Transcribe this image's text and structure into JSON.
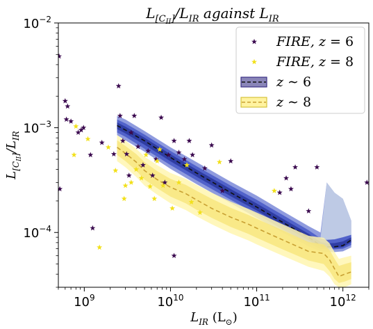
{
  "chart_data": {
    "type": "scatter",
    "title": "L_{[C_{II}]}/L_{IR} against L_{IR}",
    "title_parts": {
      "main": "L",
      "main_sub": "[C",
      "main_subsub": "II",
      "main_sub_close": "]",
      "mid": "/L",
      "mid_sub": "IR",
      "tail": " against L",
      "tail_sub": "IR"
    },
    "xlabel": "L_IR (L_⊙)",
    "xlabel_parts": {
      "main": "L",
      "sub": "IR",
      "unit": " (L",
      "unit_sub": "⊙",
      "close": ")"
    },
    "ylabel": "L_[CII]/L_IR",
    "ylabel_parts": {
      "main": "L",
      "sub": "[C",
      "subsub": "II",
      "sub_close": "]",
      "mid": "/L",
      "mid_sub": "IR"
    },
    "x_scale": "log",
    "y_scale": "log",
    "xlim": [
      500000000.0,
      2000000000000.0
    ],
    "ylim": [
      3e-05,
      0.01
    ],
    "grid": false,
    "legend_position": "top-right",
    "x_ticks": [
      {
        "value": 1000000000.0,
        "base": "10",
        "exp": "9"
      },
      {
        "value": 10000000000.0,
        "base": "10",
        "exp": "10"
      },
      {
        "value": 100000000000.0,
        "base": "10",
        "exp": "11"
      },
      {
        "value": 1000000000000.0,
        "base": "10",
        "exp": "12"
      }
    ],
    "y_ticks": [
      {
        "value": 0.0001,
        "base": "10",
        "exp": "−4"
      },
      {
        "value": 0.001,
        "base": "10",
        "exp": "−3"
      },
      {
        "value": 0.01,
        "base": "10",
        "exp": "−2"
      }
    ],
    "legend": [
      {
        "kind": "star",
        "color": "#3b0a4f",
        "label": "FIRE, ",
        "label_z": "z",
        "label_eq": " = ",
        "label_val": "6"
      },
      {
        "kind": "star",
        "color": "#f2e01a",
        "label": "FIRE, ",
        "label_z": "z",
        "label_eq": " = ",
        "label_val": "8"
      },
      {
        "kind": "band",
        "color": "#3a2f86",
        "fill": "#8a86b8",
        "dash": "#111111",
        "label_z": "z",
        "label_eq": " ∼ ",
        "label_val": "6"
      },
      {
        "kind": "band",
        "color": "#d6c33b",
        "fill": "#fff3a0",
        "dash": "#c8a032",
        "label_z": "z",
        "label_eq": " ∼ ",
        "label_val": "8"
      }
    ],
    "series": [
      {
        "name": "FIRE, z = 6",
        "kind": "scatter",
        "color": "#3b0a4f",
        "points": [
          [
            510000000.0,
            0.0048
          ],
          [
            520000000.0,
            0.00026
          ],
          [
            600000000.0,
            0.0018
          ],
          [
            640000000.0,
            0.0016
          ],
          [
            620000000.0,
            0.0012
          ],
          [
            700000000.0,
            0.00115
          ],
          [
            850000000.0,
            0.0009
          ],
          [
            920000000.0,
            0.00095
          ],
          [
            980000000.0,
            0.001
          ],
          [
            1180000000.0,
            0.00055
          ],
          [
            1250000000.0,
            0.00011
          ],
          [
            1600000000.0,
            0.00072
          ],
          [
            2200000000.0,
            0.00056
          ],
          [
            2500000000.0,
            0.0025
          ],
          [
            2600000000.0,
            0.0013
          ],
          [
            2800000000.0,
            0.00075
          ],
          [
            3100000000.0,
            0.00056
          ],
          [
            3300000000.0,
            0.00035
          ],
          [
            3500000000.0,
            0.0009
          ],
          [
            3800000000.0,
            0.0013
          ],
          [
            4200000000.0,
            0.00066
          ],
          [
            4800000000.0,
            0.00044
          ],
          [
            5500000000.0,
            0.0006
          ],
          [
            6200000000.0,
            0.00035
          ],
          [
            6800000000.0,
            0.0005
          ],
          [
            7800000000.0,
            0.00125
          ],
          [
            8600000000.0,
            0.0003
          ],
          [
            9500000000.0,
            0.00055
          ],
          [
            11000000000.0,
            0.00075
          ],
          [
            11000000000.0,
            6e-05
          ],
          [
            12500000000.0,
            0.00058
          ],
          [
            14500000000.0,
            0.0005
          ],
          [
            16500000000.0,
            0.00075
          ],
          [
            18000000000.0,
            0.00055
          ],
          [
            25000000000.0,
            0.00041
          ],
          [
            30000000000.0,
            0.00068
          ],
          [
            40000000000.0,
            0.00025
          ],
          [
            50000000000.0,
            0.00048
          ],
          [
            185000000000.0,
            0.00024
          ],
          [
            220000000000.0,
            0.00033
          ],
          [
            250000000000.0,
            0.00026
          ],
          [
            280000000000.0,
            0.00042
          ],
          [
            400000000000.0,
            0.00016
          ],
          [
            500000000000.0,
            0.00042
          ],
          [
            1900000000000.0,
            0.0003
          ]
        ]
      },
      {
        "name": "FIRE, z = 8",
        "kind": "scatter",
        "color": "#f2e01a",
        "points": [
          [
            760000000.0,
            0.00055
          ],
          [
            800000000.0,
            0.00103
          ],
          [
            1100000000.0,
            0.00078
          ],
          [
            1500000000.0,
            7.2e-05
          ],
          [
            1900000000.0,
            0.00065
          ],
          [
            2300000000.0,
            0.00039
          ],
          [
            2900000000.0,
            0.00021
          ],
          [
            3000000000.0,
            0.00028
          ],
          [
            3500000000.0,
            0.0003
          ],
          [
            4000000000.0,
            0.0004
          ],
          [
            4600000000.0,
            0.00033
          ],
          [
            5200000000.0,
            0.00055
          ],
          [
            5800000000.0,
            0.000275
          ],
          [
            6500000000.0,
            0.00021
          ],
          [
            7000000000.0,
            0.00048
          ],
          [
            7500000000.0,
            0.00062
          ],
          [
            8200000000.0,
            0.00028
          ],
          [
            10500000000.0,
            0.00017
          ],
          [
            12500000000.0,
            0.0003
          ],
          [
            15500000000.0,
            0.00044
          ],
          [
            17500000000.0,
            0.000195
          ],
          [
            22000000000.0,
            0.000155
          ],
          [
            37000000000.0,
            0.00047
          ],
          [
            160000000000.0,
            0.00025
          ]
        ]
      },
      {
        "name": "z ∼ 6",
        "kind": "band",
        "line_color": "#111111",
        "x": [
          2400000000.0,
          3000000000.0,
          5000000000.0,
          10000000000.0,
          20000000000.0,
          50000000000.0,
          100000000000.0,
          200000000000.0,
          400000000000.0,
          550000000000.0,
          650000000000.0,
          800000000000.0,
          1000000000000.0,
          1250000000000.0
        ],
        "median": [
          0.00105,
          0.00095,
          0.00075,
          0.00052,
          0.00037,
          0.00024,
          0.000175,
          0.000125,
          9e-05,
          7.5e-05,
          7.3e-05,
          7.3e-05,
          7.5e-05,
          8.5e-05
        ],
        "inner_low": [
          0.0009,
          0.00082,
          0.00063,
          0.00044,
          0.000315,
          0.000205,
          0.00015,
          0.000107,
          7.9e-05,
          7e-05,
          6.9e-05,
          6.9e-05,
          7e-05,
          7.6e-05
        ],
        "inner_high": [
          0.0012,
          0.0011,
          0.00086,
          0.0006,
          0.00043,
          0.00028,
          0.000205,
          0.000147,
          0.000105,
          8.8e-05,
          8.5e-05,
          8.6e-05,
          9e-05,
          9.5e-05
        ],
        "outer_low": [
          0.00085,
          0.00076,
          0.00059,
          0.000405,
          0.00029,
          0.00019,
          0.000138,
          0.0001,
          7.4e-05,
          6.6e-05,
          6.5e-05,
          6.5e-05,
          6.6e-05,
          7.2e-05
        ],
        "outer_high": [
          0.0013,
          0.0012,
          0.00093,
          0.00065,
          0.00047,
          0.000305,
          0.000225,
          0.00016,
          0.000115,
          0.0001,
          0.0003,
          0.00024,
          0.00021,
          0.00013
        ],
        "hi_spike": [
          null,
          null,
          null,
          null,
          null,
          null,
          null,
          null,
          null,
          null,
          0.0003,
          0.00024,
          0.00021,
          0.00013
        ]
      },
      {
        "name": "z ∼ 8",
        "kind": "band",
        "line_color": "#c8a032",
        "x": [
          2400000000.0,
          3000000000.0,
          4000000000.0,
          5000000000.0,
          7000000000.0,
          10000000000.0,
          15000000000.0,
          20000000000.0,
          30000000000.0,
          50000000000.0,
          80000000000.0,
          100000000000.0,
          200000000000.0,
          400000000000.0,
          600000000000.0,
          700000000000.0,
          800000000000.0,
          900000000000.0,
          1050000000000.0,
          1250000000000.0
        ],
        "median": [
          0.00065,
          0.00057,
          0.00047,
          0.00039,
          0.00032,
          0.00027,
          0.000235,
          0.000205,
          0.00017,
          0.00014,
          0.00012,
          0.00011,
          8.5e-05,
          6.6e-05,
          6.3e-05,
          5.5e-05,
          4.5e-05,
          3.8e-05,
          4e-05,
          4.2e-05
        ],
        "inner_low": [
          0.00055,
          0.00048,
          0.00039,
          0.00032,
          0.000265,
          0.00022,
          0.00019,
          0.000165,
          0.000138,
          0.000113,
          9.7e-05,
          8.9e-05,
          6.9e-05,
          5.4e-05,
          5e-05,
          4.3e-05,
          3.6e-05,
          3.3e-05,
          3.4e-05,
          3.6e-05
        ],
        "inner_high": [
          0.00076,
          0.00067,
          0.00056,
          0.00047,
          0.000385,
          0.000325,
          0.000285,
          0.00025,
          0.00021,
          0.000172,
          0.000147,
          0.000135,
          0.000105,
          8.1e-05,
          7.7e-05,
          6.8e-05,
          5.6e-05,
          4.8e-05,
          5e-05,
          5.2e-05
        ],
        "outer_low": [
          0.00048,
          0.00042,
          0.00034,
          0.00028,
          0.00023,
          0.00019,
          0.000164,
          0.000143,
          0.00012,
          9.8e-05,
          8.4e-05,
          7.7e-05,
          6e-05,
          4.7e-05,
          4.3e-05,
          3.8e-05,
          3.2e-05,
          3e-05,
          3e-05,
          3.2e-05
        ],
        "outer_high": [
          0.00085,
          0.00075,
          0.00063,
          0.00053,
          0.00044,
          0.00037,
          0.000325,
          0.000285,
          0.00024,
          0.000197,
          0.000168,
          0.000155,
          0.00012,
          9.3e-05,
          8.9e-05,
          7.9e-05,
          6.5e-05,
          5.6e-05,
          5.8e-05,
          6e-05
        ]
      }
    ],
    "colors": {
      "z6_band_outer": "#7b8ad8",
      "z6_band_mid": "#4a5cc8",
      "z6_band_inner": "#2b3a9e",
      "z6_spike": "#c9d6e6",
      "z8_band_outer": "#fff6b0",
      "z8_band_inner": "#f7e57a"
    }
  }
}
